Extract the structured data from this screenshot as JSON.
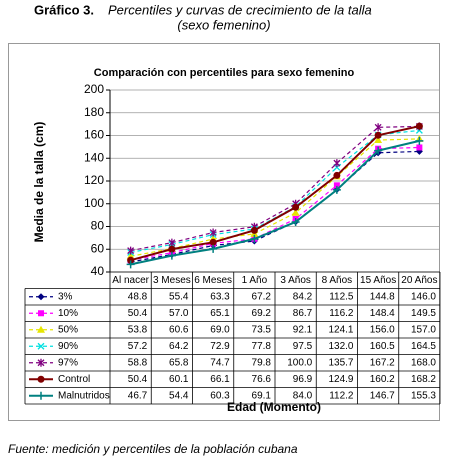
{
  "caption": {
    "label": "Gráfico 3.",
    "title": "Percentiles y curvas de crecimiento de la talla",
    "subtitle": "(sexo femenino)"
  },
  "chart_data": {
    "type": "line",
    "title": "Comparación con percentiles para sexo femenino",
    "y_label": "Media de la talla (cm)",
    "x_label": "Edad (Momento)",
    "categories": [
      "Al nacer",
      "3 Meses",
      "6 Meses",
      "1 Año",
      "3 Años",
      "8 Años",
      "15 Años",
      "20 Años"
    ],
    "ylim": [
      40,
      200
    ],
    "yticks": [
      40,
      60,
      80,
      100,
      120,
      140,
      160,
      180,
      200
    ],
    "grid": true,
    "data_table": true,
    "series": [
      {
        "name": "3%",
        "color": "#000080",
        "dashed": true,
        "marker": "diamond",
        "values": [
          48.8,
          55.4,
          63.3,
          67.2,
          84.2,
          112.5,
          144.8,
          146
        ],
        "value_labels": [
          "48.8",
          "55.4",
          "63.3",
          "67.2",
          "84.2",
          "112.5",
          "144.8",
          "146.0"
        ]
      },
      {
        "name": "10%",
        "color": "#ff00ff",
        "dashed": true,
        "marker": "square",
        "values": [
          50.4,
          57,
          65.1,
          69.2,
          86.7,
          116.2,
          148.4,
          149.5
        ],
        "value_labels": [
          "50.4",
          "57.0",
          "65.1",
          "69.2",
          "86.7",
          "116.2",
          "148.4",
          "149.5"
        ]
      },
      {
        "name": "50%",
        "color": "#e6e600",
        "dashed": true,
        "marker": "triangle",
        "values": [
          53.8,
          60.6,
          69,
          73.5,
          92.1,
          124.1,
          156,
          157
        ],
        "value_labels": [
          "53.8",
          "60.6",
          "69.0",
          "73.5",
          "92.1",
          "124.1",
          "156.0",
          "157.0"
        ]
      },
      {
        "name": "90%",
        "color": "#00e0e0",
        "dashed": true,
        "marker": "x",
        "values": [
          57.2,
          64.2,
          72.9,
          77.8,
          97.5,
          132,
          160.5,
          164.5
        ],
        "value_labels": [
          "57.2",
          "64.2",
          "72.9",
          "77.8",
          "97.5",
          "132.0",
          "160.5",
          "164.5"
        ]
      },
      {
        "name": "97%",
        "color": "#800080",
        "dashed": true,
        "marker": "star",
        "values": [
          58.8,
          65.8,
          74.7,
          79.8,
          100,
          135.7,
          167.2,
          168
        ],
        "value_labels": [
          "58.8",
          "65.8",
          "74.7",
          "79.8",
          "100.0",
          "135.7",
          "167.2",
          "168.0"
        ]
      },
      {
        "name": "Control",
        "color": "#800000",
        "dashed": false,
        "marker": "circle",
        "values": [
          50.4,
          60.1,
          66.1,
          76.6,
          96.9,
          124.9,
          160.2,
          168.2
        ],
        "value_labels": [
          "50.4",
          "60.1",
          "66.1",
          "76.6",
          "96.9",
          "124.9",
          "160.2",
          "168.2"
        ]
      },
      {
        "name": "Malnutridos",
        "color": "#008080",
        "dashed": false,
        "marker": "plus",
        "values": [
          46.7,
          54.4,
          60.3,
          69.1,
          84,
          112.2,
          146.7,
          155.3
        ],
        "value_labels": [
          "46.7",
          "54.4",
          "60.3",
          "69.1",
          "84.0",
          "112.2",
          "146.7",
          "155.3"
        ]
      }
    ]
  },
  "footer": "Fuente: medición y percentiles de la población cubana"
}
